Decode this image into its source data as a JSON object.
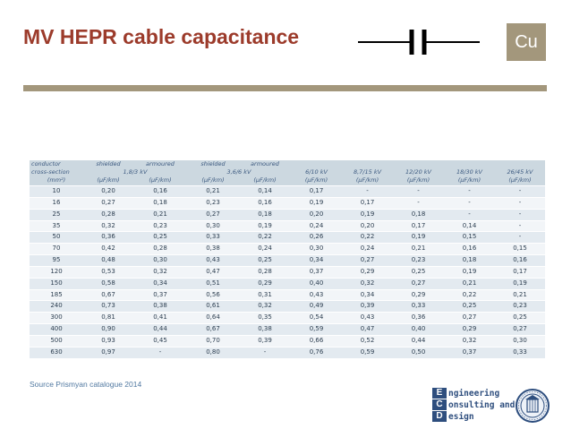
{
  "slide": {
    "title": "MV HEPR cable capacitance",
    "badge": "Cu",
    "source": "Source Prismyan catalogue 2014"
  },
  "table": {
    "head1": [
      "conductor",
      "shielded",
      "armoured",
      "shielded",
      "armoured"
    ],
    "head2_left": [
      "cross-section",
      "1,8/3 kV",
      "3,6/6 kV",
      "6/10 kV",
      "8,7/15 kV",
      "12/20 kV",
      "18/30 kV",
      "26/45 kV"
    ],
    "head3": [
      "(mm²)",
      "(μF/km)",
      "(μF/km)",
      "(μF/km)",
      "(μF/km)",
      "(μF/km)",
      "(μF/km)",
      "(μF/km)",
      "(μF/km)",
      "(μF/km)"
    ],
    "rows": [
      [
        "10",
        "0,20",
        "0,16",
        "0,21",
        "0,14",
        "0,17",
        "-",
        "-",
        "-",
        "-"
      ],
      [
        "16",
        "0,27",
        "0,18",
        "0,23",
        "0,16",
        "0,19",
        "0,17",
        "-",
        "-",
        "-"
      ],
      [
        "25",
        "0,28",
        "0,21",
        "0,27",
        "0,18",
        "0,20",
        "0,19",
        "0,18",
        "-",
        "-"
      ],
      [
        "35",
        "0,32",
        "0,23",
        "0,30",
        "0,19",
        "0,24",
        "0,20",
        "0,17",
        "0,14",
        "-"
      ],
      [
        "50",
        "0,36",
        "0,25",
        "0,33",
        "0,22",
        "0,26",
        "0,22",
        "0,19",
        "0,15",
        "-"
      ],
      [
        "70",
        "0,42",
        "0,28",
        "0,38",
        "0,24",
        "0,30",
        "0,24",
        "0,21",
        "0,16",
        "0,15"
      ],
      [
        "95",
        "0,48",
        "0,30",
        "0,43",
        "0,25",
        "0,34",
        "0,27",
        "0,23",
        "0,18",
        "0,16"
      ],
      [
        "120",
        "0,53",
        "0,32",
        "0,47",
        "0,28",
        "0,37",
        "0,29",
        "0,25",
        "0,19",
        "0,17"
      ],
      [
        "150",
        "0,58",
        "0,34",
        "0,51",
        "0,29",
        "0,40",
        "0,32",
        "0,27",
        "0,21",
        "0,19"
      ],
      [
        "185",
        "0,67",
        "0,37",
        "0,56",
        "0,31",
        "0,43",
        "0,34",
        "0,29",
        "0,22",
        "0,21"
      ],
      [
        "240",
        "0,73",
        "0,38",
        "0,61",
        "0,32",
        "0,49",
        "0,39",
        "0,33",
        "0,25",
        "0,23"
      ],
      [
        "300",
        "0,81",
        "0,41",
        "0,64",
        "0,35",
        "0,54",
        "0,43",
        "0,36",
        "0,27",
        "0,25"
      ],
      [
        "400",
        "0,90",
        "0,44",
        "0,67",
        "0,38",
        "0,59",
        "0,47",
        "0,40",
        "0,29",
        "0,27"
      ],
      [
        "500",
        "0,93",
        "0,45",
        "0,70",
        "0,39",
        "0,66",
        "0,52",
        "0,44",
        "0,32",
        "0,30"
      ],
      [
        "630",
        "0,97",
        "-",
        "0,80",
        "-",
        "0,76",
        "0,59",
        "0,50",
        "0,37",
        "0,33"
      ]
    ]
  },
  "logo": {
    "letters": [
      "E",
      "C",
      "D"
    ],
    "words": [
      "ngineering",
      "onsulting and",
      "esign"
    ]
  },
  "colors": {
    "title": "#9c3b2b",
    "accent": "#a3977c",
    "table_header": "#ccd8e0",
    "table_text": "#2c3e50",
    "logo_blue": "#2e4e7e"
  },
  "icons": {
    "symbol": "capacitor-symbol-icon",
    "seal": "university-seal-icon"
  }
}
